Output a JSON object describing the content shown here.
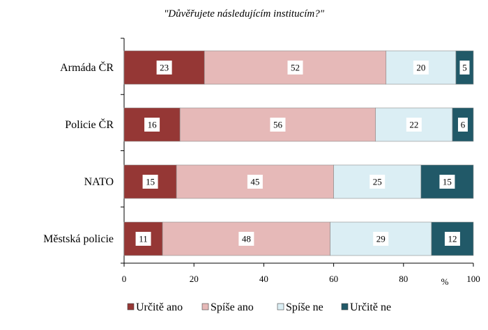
{
  "chart_data": {
    "type": "bar",
    "orientation": "horizontal",
    "stacked": true,
    "title": "\"Důvěřujete následujícím institucím?\"",
    "categories": [
      "Armáda ČR",
      "Policie ČR",
      "NATO",
      "Městská policie"
    ],
    "series": [
      {
        "name": "Určitě ano",
        "color": "#953735",
        "values": [
          23,
          16,
          15,
          11
        ]
      },
      {
        "name": "Spíše ano",
        "color": "#e6b9b8",
        "values": [
          52,
          56,
          45,
          48
        ]
      },
      {
        "name": "Spíše ne",
        "color": "#dbeef4",
        "values": [
          20,
          22,
          25,
          29
        ]
      },
      {
        "name": "Určitě ne",
        "color": "#215968",
        "values": [
          5,
          6,
          15,
          12
        ]
      }
    ],
    "xlim": [
      0,
      100
    ],
    "xticks": [
      0,
      20,
      40,
      60,
      80,
      100
    ],
    "x_unit": "%",
    "grid": false,
    "legend_position": "bottom"
  }
}
